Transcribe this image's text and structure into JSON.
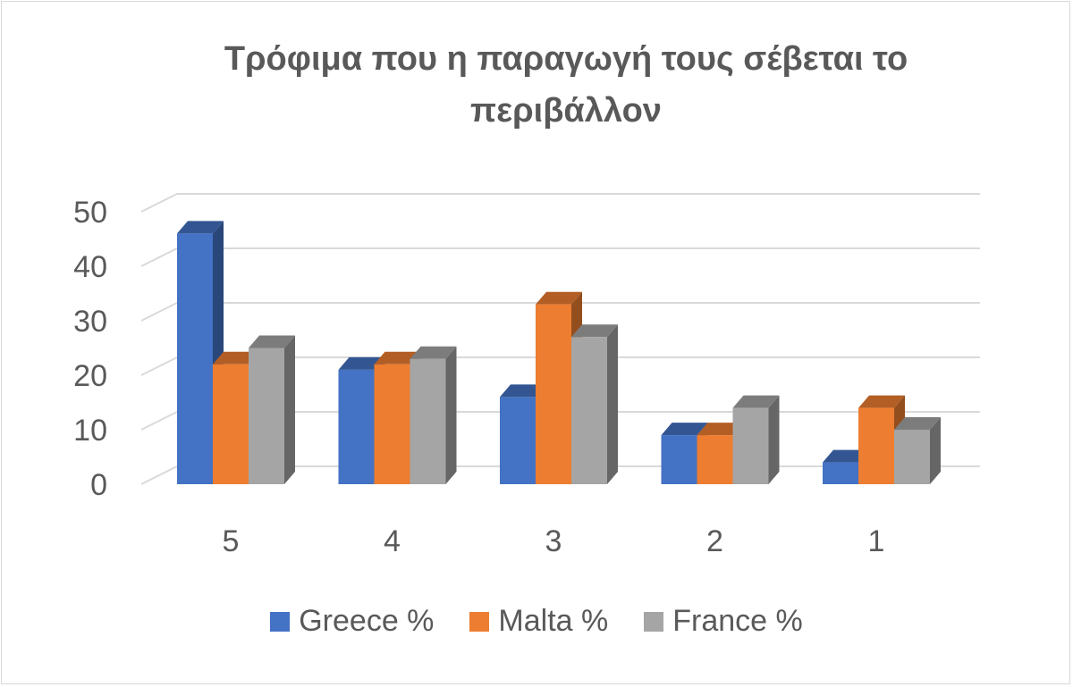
{
  "chart_data": {
    "type": "bar",
    "title_lines": [
      "Τρόφιμα που η παραγωγή τους σέβεται το",
      "περιβάλλον"
    ],
    "categories": [
      "5",
      "4",
      "3",
      "2",
      "1"
    ],
    "series": [
      {
        "name": "Greece %",
        "values": [
          46,
          21,
          16,
          9,
          4
        ],
        "color": "#4472c4"
      },
      {
        "name": "Malta %",
        "values": [
          22,
          22,
          33,
          9,
          14
        ],
        "color": "#ed7d31"
      },
      {
        "name": "France %",
        "values": [
          25,
          23,
          27,
          14,
          10
        ],
        "color": "#a5a5a5"
      }
    ],
    "yticks": [
      "0",
      "10",
      "20",
      "30",
      "40",
      "50"
    ],
    "ylim": [
      0,
      50
    ],
    "grid": true,
    "legend_position": "bottom"
  }
}
